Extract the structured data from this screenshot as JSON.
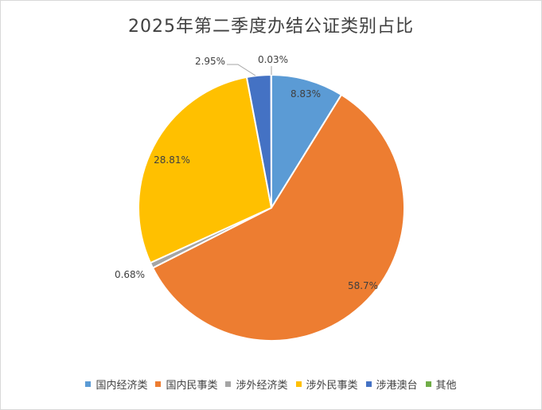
{
  "chart_data": {
    "type": "pie",
    "title": "2025年第二季度办结公证类别占比",
    "slices": [
      {
        "label": "国内经济类",
        "value": 8.83,
        "value_label": "8.83%",
        "color": "#5b9bd5"
      },
      {
        "label": "国内民事类",
        "value": 58.7,
        "value_label": "58.7%",
        "color": "#ed7d31"
      },
      {
        "label": "涉外经济类",
        "value": 0.68,
        "value_label": "0.68%",
        "color": "#a5a5a5"
      },
      {
        "label": "涉外民事类",
        "value": 28.81,
        "value_label": "28.81%",
        "color": "#ffc000"
      },
      {
        "label": "涉港澳台",
        "value": 2.95,
        "value_label": "2.95%",
        "color": "#4472c4"
      },
      {
        "label": "其他",
        "value": 0.03,
        "value_label": "0.03%",
        "color": "#70ad47"
      }
    ],
    "legend_position": "bottom"
  }
}
